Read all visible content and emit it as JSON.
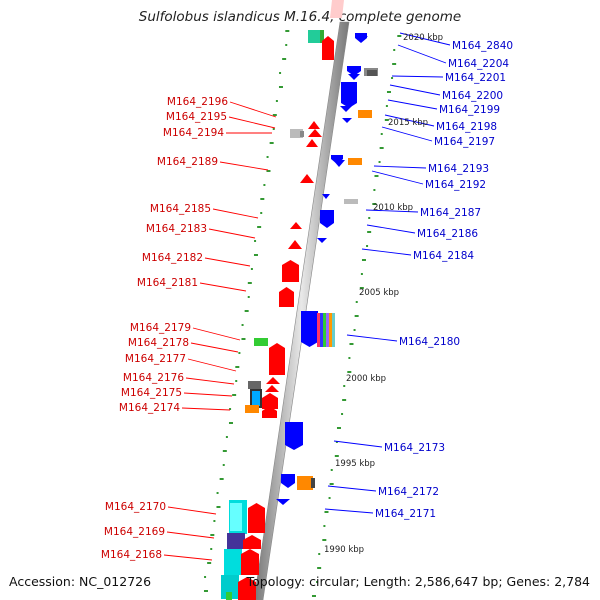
{
  "title": "Sulfolobus islandicus M.16.4, complete genome",
  "footer": {
    "accession": "Accession: NC_012726",
    "summary": "Topology: circular; Length: 2,586,647 bp; Genes: 2,784"
  },
  "colors": {
    "forward_gene": "#ff0000",
    "reverse_gene": "#0000ff",
    "left_label": "#cc0000",
    "right_label": "#0000cc",
    "tick": "#339933",
    "backbone": "#999999"
  },
  "kbp_labels": [
    "2020 kbp",
    "2015 kbp",
    "2010 kbp",
    "2005 kbp",
    "2000 kbp",
    "1995 kbp",
    "1990 kbp"
  ],
  "left_genes": [
    "M164_2196",
    "M164_2195",
    "M164_2194",
    "M164_2189",
    "M164_2185",
    "M164_2183",
    "M164_2182",
    "M164_2181",
    "M164_2179",
    "M164_2178",
    "M164_2177",
    "M164_2176",
    "M164_2175",
    "M164_2174",
    "M164_2170",
    "M164_2169",
    "M164_2168"
  ],
  "right_genes": [
    "M164_2840",
    "M164_2204",
    "M164_2201",
    "M164_2200",
    "M164_2199",
    "M164_2198",
    "M164_2197",
    "M164_2193",
    "M164_2192",
    "M164_2187",
    "M164_2186",
    "M164_2184",
    "M164_2180",
    "M164_2173",
    "M164_2172",
    "M164_2171"
  ]
}
